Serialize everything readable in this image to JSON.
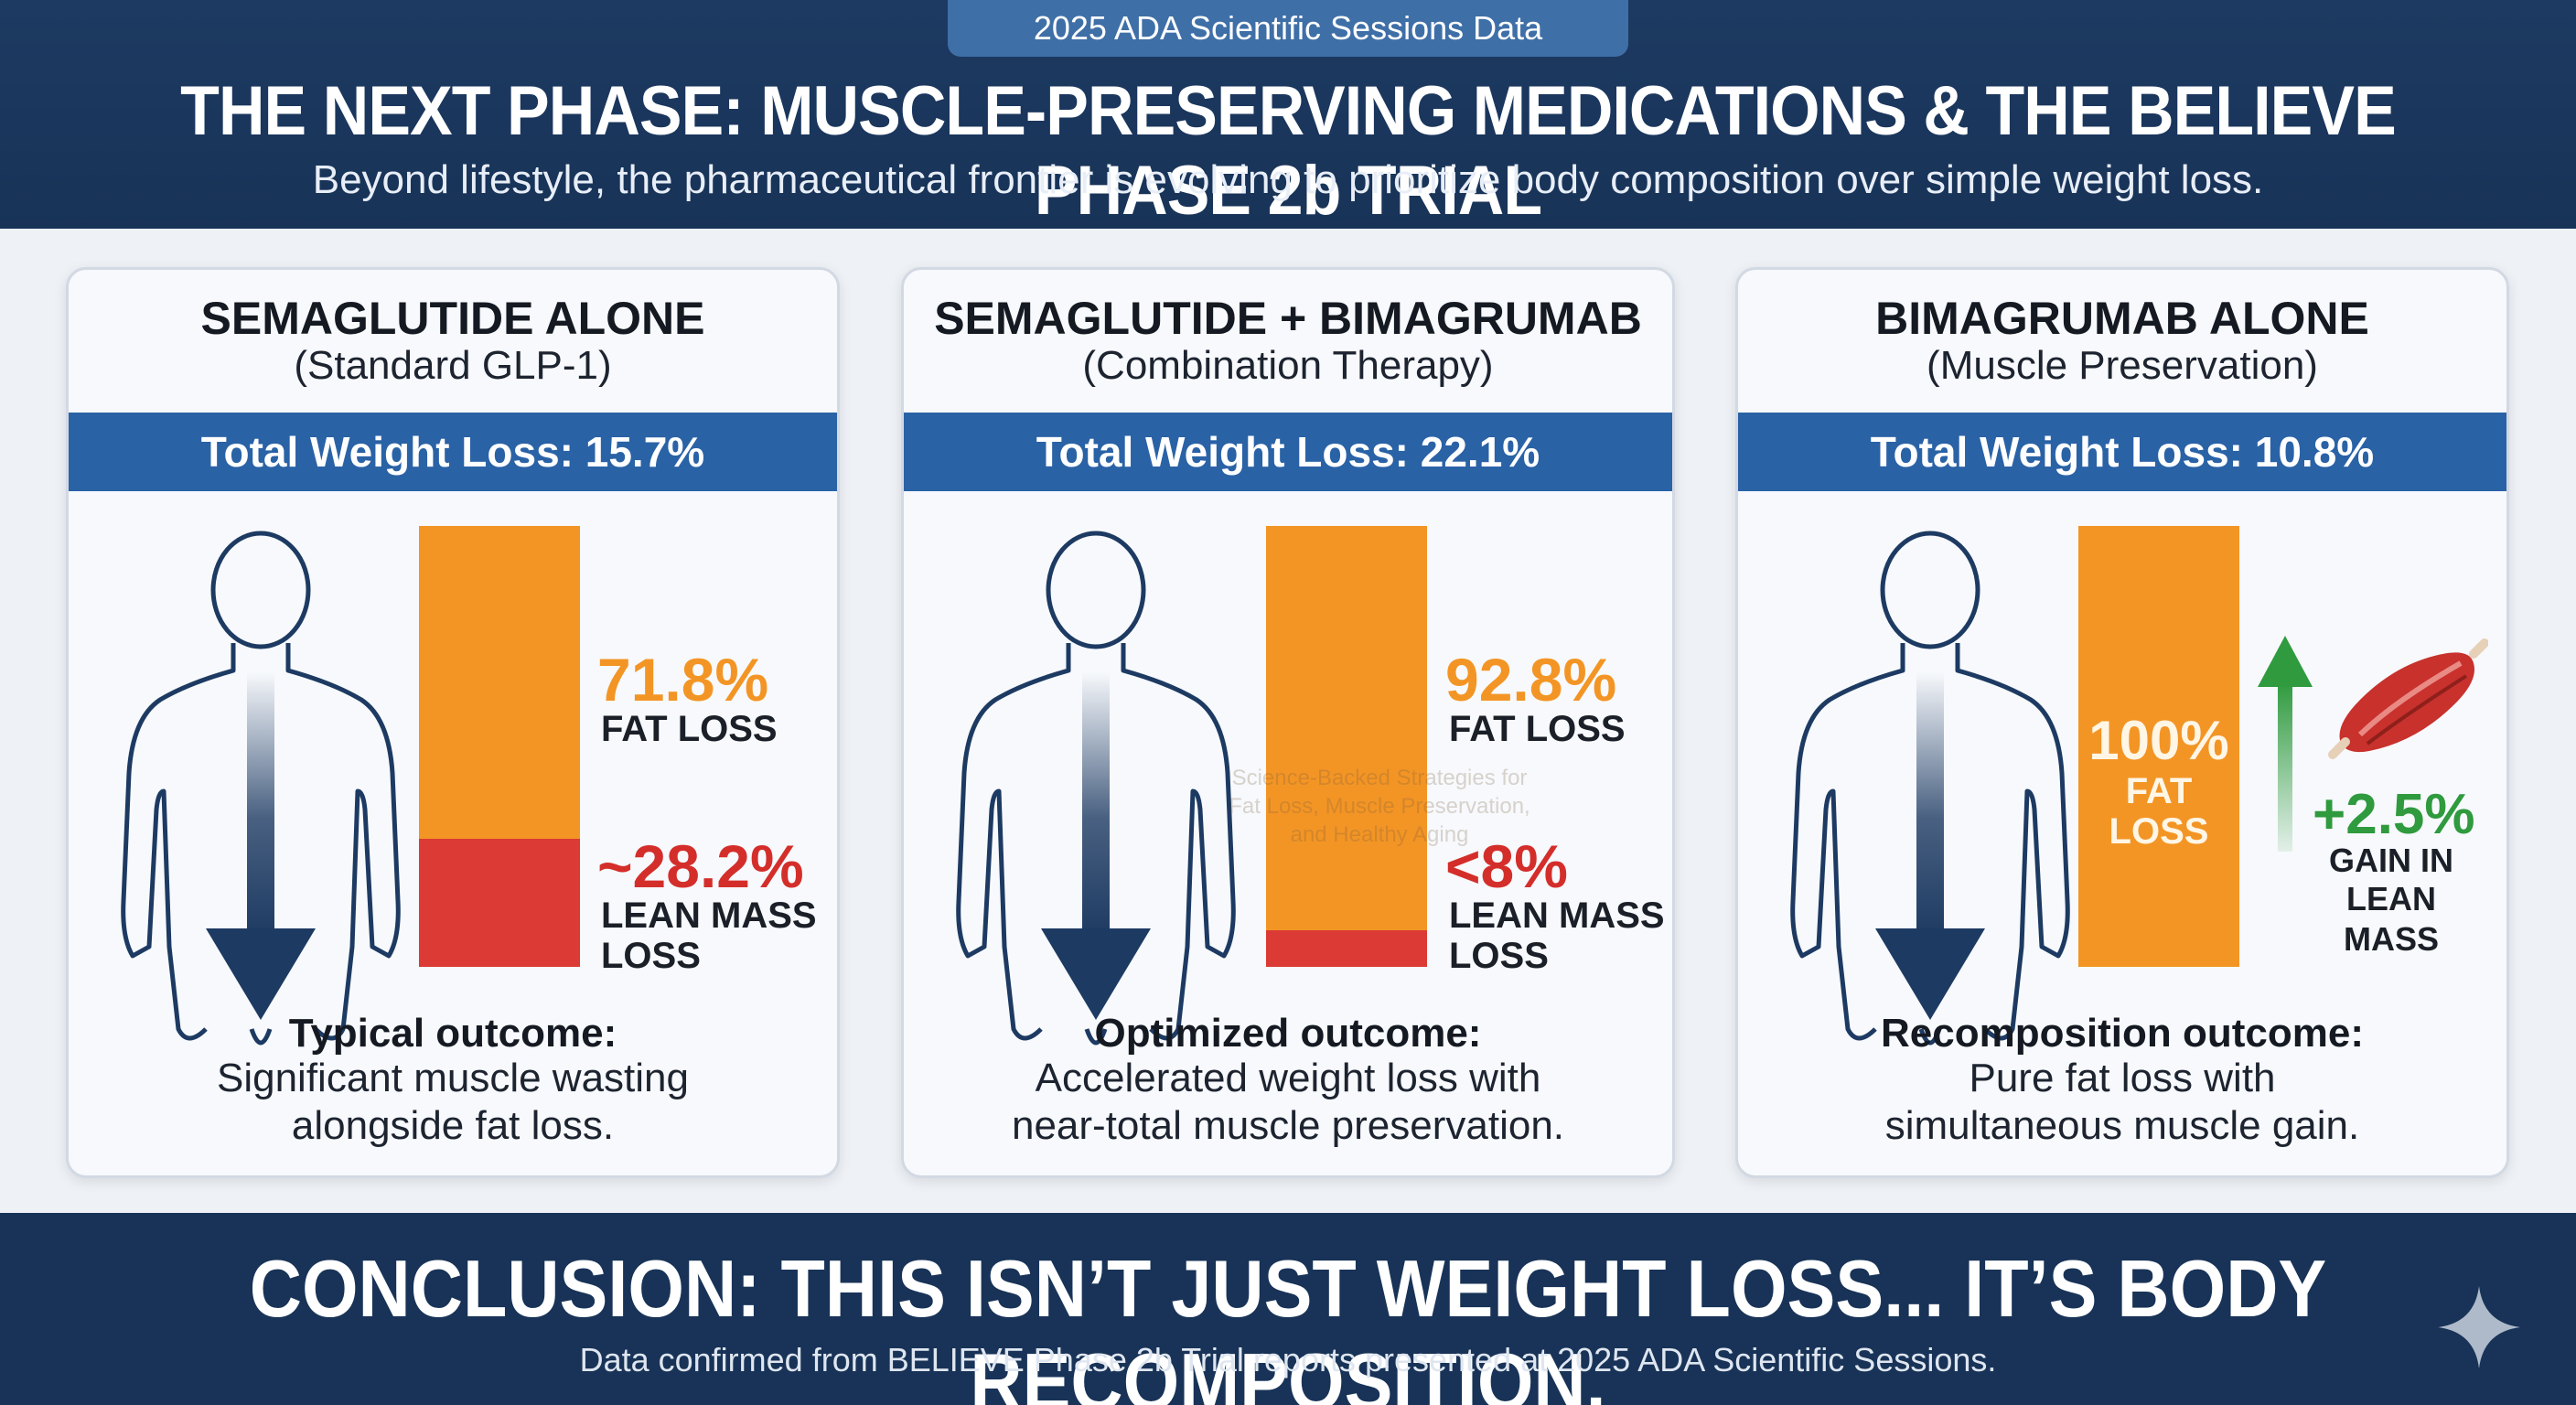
{
  "header": {
    "badge": "2025 ADA Scientific Sessions Data",
    "title": "THE NEXT PHASE: MUSCLE-PRESERVING MEDICATIONS & THE BELIEVE PHASE 2b TRIAL",
    "subtitle": "Beyond lifestyle, the pharmaceutical frontier is evolving to prioritize body composition over simple weight loss."
  },
  "panels": [
    {
      "title": "SEMAGLUTIDE ALONE",
      "subtitle": "(Standard GLP-1)",
      "band": "Total Weight Loss: 15.7%",
      "fat_pct": "71.8%",
      "fat_label": "FAT LOSS",
      "lean_pct": "~28.2%",
      "lean_label_1": "LEAN MASS",
      "lean_label_2": "LOSS",
      "outcome_head": "Typical outcome:",
      "outcome_line1": "Significant muscle wasting",
      "outcome_line2": "alongside fat loss.",
      "fat_fraction": 0.718,
      "lean_fraction": 0.282
    },
    {
      "title": "SEMAGLUTIDE + BIMAGRUMAB",
      "subtitle": "(Combination Therapy)",
      "band": "Total Weight Loss: 22.1%",
      "fat_pct": "92.8%",
      "fat_label": "FAT LOSS",
      "lean_pct": "<8%",
      "lean_label_1": "LEAN MASS",
      "lean_label_2": "LOSS",
      "outcome_head": "Optimized outcome:",
      "outcome_line1": "Accelerated weight loss with",
      "outcome_line2": "near-total muscle preservation.",
      "fat_fraction": 0.928,
      "lean_fraction": 0.072,
      "watermark": [
        "Science-Backed Strategies for",
        "Fat Loss, Muscle Preservation,",
        "and Healthy Aging"
      ]
    },
    {
      "title": "BIMAGRUMAB ALONE",
      "subtitle": "(Muscle Preservation)",
      "band": "Total Weight Loss: 10.8%",
      "fat_pct": "100%",
      "fat_label": "FAT LOSS",
      "gain_pct": "+2.5%",
      "gain_label_1": "GAIN IN",
      "gain_label_2": "LEAN MASS",
      "outcome_head": "Recomposition outcome:",
      "outcome_line1": "Pure fat loss with",
      "outcome_line2": "simultaneous muscle gain.",
      "fat_fraction": 1.0
    }
  ],
  "footer": {
    "conclusion": "CONCLUSION: THIS ISN’T JUST WEIGHT LOSS... IT’S BODY RECOMPOSITION.",
    "footnote": "Data confirmed from BELIEVE Phase 2b Trial reports presented at 2025 ADA Scientific Sessions."
  },
  "colors": {
    "navy": "#183357",
    "band_blue": "#2a62a6",
    "fat_orange": "#f39525",
    "lean_red": "#dc3a34",
    "gain_green": "#2f9a3e"
  },
  "icons": [
    "human-silhouette-icon",
    "down-arrow-icon",
    "up-arrow-icon",
    "muscle-icon",
    "sparkle-icon"
  ]
}
